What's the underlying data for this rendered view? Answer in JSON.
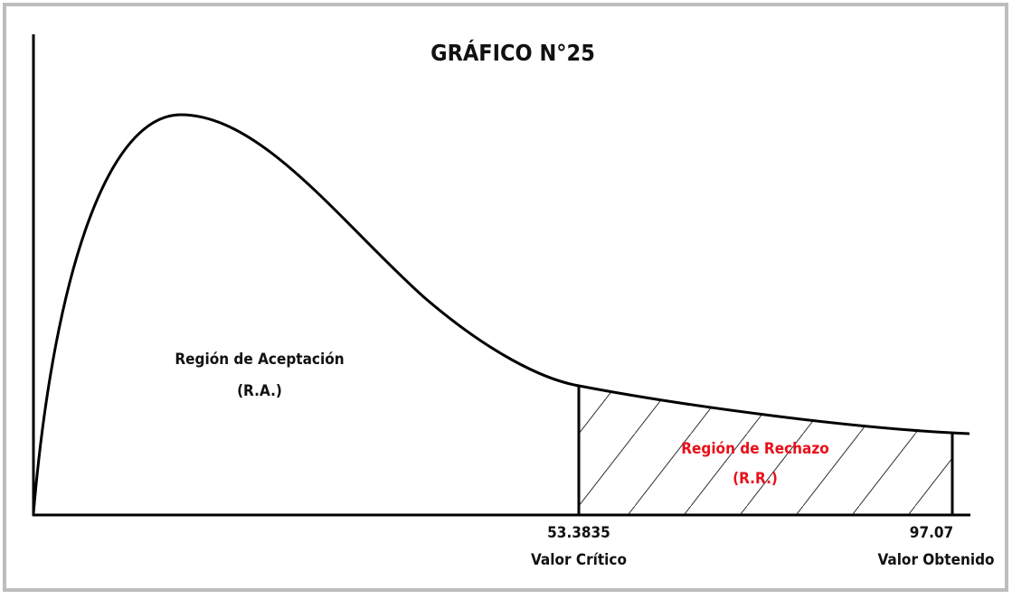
{
  "title": "GRÁFICO N°25",
  "acceptance": {
    "label": "Región de Aceptación",
    "abbr": "(R.A.)"
  },
  "rejection": {
    "label": "Región de Rechazo",
    "abbr": "(R.R.)"
  },
  "critical": {
    "value": "53.3835",
    "label": "Valor Crítico"
  },
  "obtained": {
    "value": "97.07",
    "label": "Valor Obtenido"
  }
}
